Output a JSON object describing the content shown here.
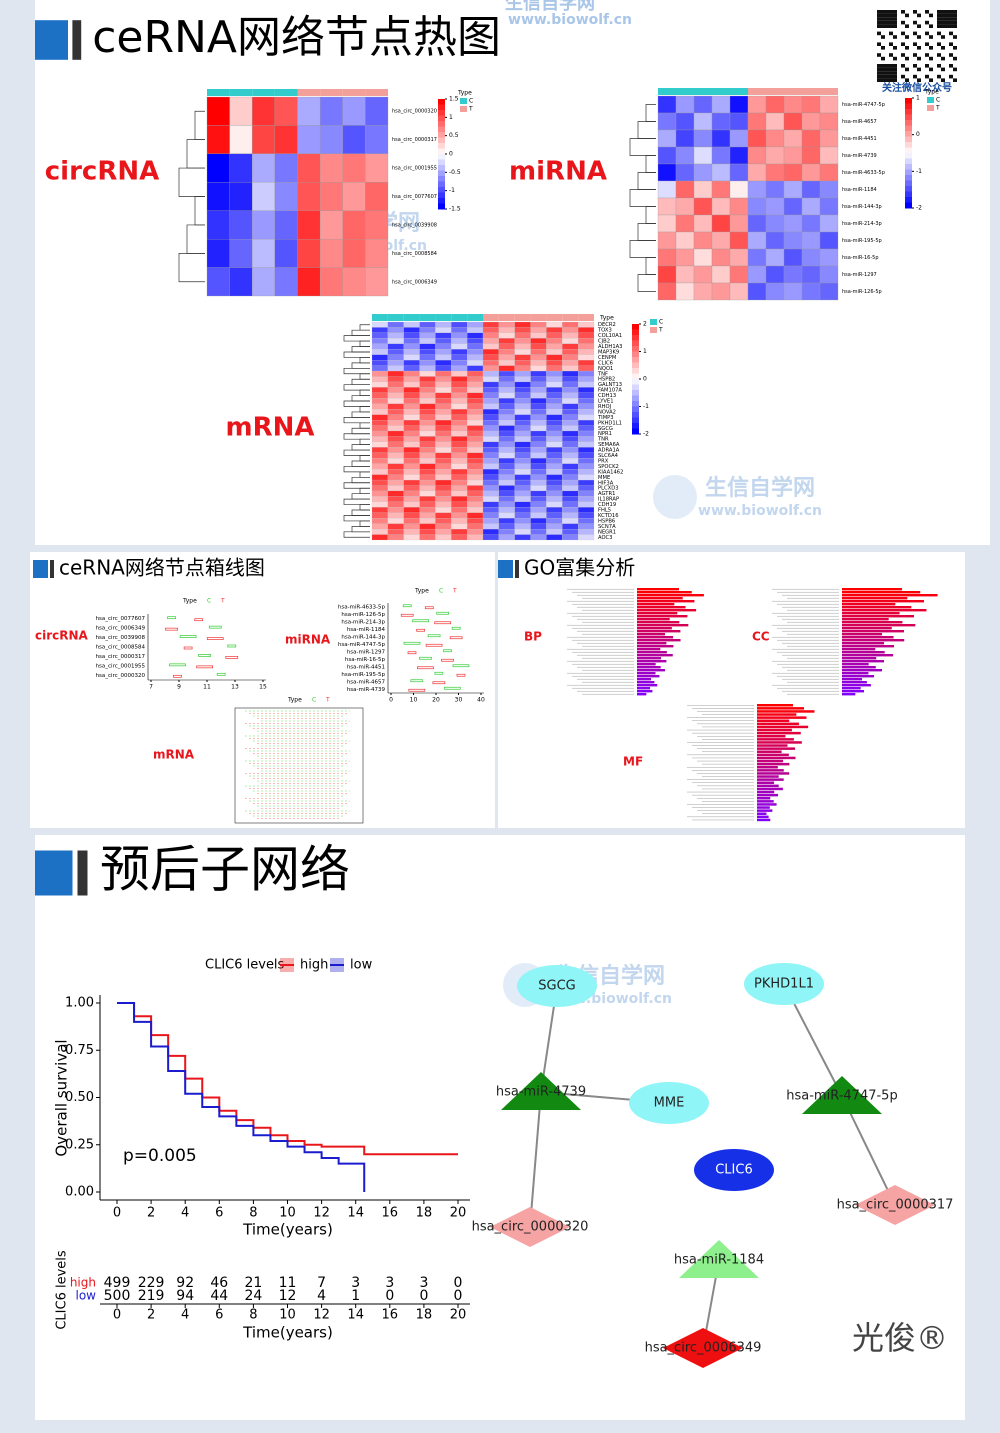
{
  "watermark": {
    "name": "生信自学网",
    "url": "www.biowolf.cn"
  },
  "qr_caption": "关注微信公众号",
  "heatmap_section": {
    "title": "ceRNA网络节点热图",
    "legend_title": "Type",
    "legend_items": [
      "C",
      "T"
    ],
    "circ": {
      "label": "circRNA",
      "rows": [
        "hsa_circ_0000320",
        "hsa_circ_0000317",
        "hsa_circ_0001955",
        "hsa_circ_0077607",
        "hsa_circ_0039908",
        "hsa_circ_0008584",
        "hsa_circ_0006349"
      ],
      "groups": [
        "C",
        "C",
        "C",
        "C",
        "T",
        "T",
        "T",
        "T"
      ],
      "scale_ticks": [
        1.5,
        1,
        0.5,
        0,
        -0.5,
        -1,
        -1.5
      ],
      "matrix": [
        [
          1.5,
          0.3,
          1.2,
          1.0,
          -0.5,
          -0.8,
          -0.6,
          -0.9
        ],
        [
          1.4,
          0.1,
          1.1,
          1.2,
          -0.6,
          -0.7,
          -1.0,
          -0.8
        ],
        [
          -1.5,
          -1.2,
          -0.5,
          -0.8,
          1.0,
          0.7,
          0.8,
          0.6
        ],
        [
          -1.4,
          -1.3,
          -0.3,
          -0.7,
          1.0,
          0.8,
          0.6,
          0.9
        ],
        [
          -1.2,
          -1.0,
          -0.6,
          -0.9,
          1.2,
          0.6,
          0.9,
          0.8
        ],
        [
          -1.3,
          -0.9,
          -0.4,
          -1.0,
          1.1,
          0.7,
          0.9,
          0.7
        ],
        [
          -1.0,
          -1.2,
          -0.5,
          -0.8,
          1.3,
          0.8,
          0.7,
          0.6
        ]
      ]
    },
    "mirna": {
      "label": "miRNA",
      "rows": [
        "hsa-miR-4747-5p",
        "hsa-miR-4657",
        "hsa-miR-4451",
        "hsa-miR-4739",
        "hsa-miR-4633-5p",
        "hsa-miR-1184",
        "hsa-miR-144-3p",
        "hsa-miR-214-3p",
        "hsa-miR-195-5p",
        "hsa-miR-16-5p",
        "hsa-miR-1297",
        "hsa-miR-126-5p"
      ],
      "groups": [
        "C",
        "C",
        "C",
        "C",
        "C",
        "T",
        "T",
        "T",
        "T",
        "T"
      ],
      "scale_ticks": [
        1,
        0,
        -1,
        -2
      ],
      "matrix": [
        [
          -1.2,
          -0.6,
          -0.9,
          -0.5,
          -1.4,
          0.6,
          0.9,
          0.7,
          0.8,
          0.5
        ],
        [
          -0.8,
          -1.0,
          -0.4,
          -0.9,
          -1.0,
          0.8,
          0.4,
          1.0,
          0.6,
          0.7
        ],
        [
          -0.5,
          -1.1,
          -0.7,
          -1.2,
          -0.6,
          1.0,
          0.7,
          0.5,
          0.9,
          0.6
        ],
        [
          -1.0,
          -0.7,
          -0.2,
          -0.8,
          -1.3,
          0.7,
          0.5,
          0.6,
          0.9,
          0.4
        ],
        [
          -1.4,
          -0.9,
          -0.6,
          -0.4,
          -0.9,
          0.5,
          0.8,
          0.9,
          0.6,
          0.8
        ],
        [
          -0.2,
          0.9,
          0.3,
          0.8,
          0.1,
          -0.6,
          -0.8,
          -0.5,
          -0.9,
          -0.7
        ],
        [
          0.4,
          0.5,
          1.0,
          0.4,
          0.7,
          -0.7,
          -0.6,
          -0.9,
          -0.5,
          -0.8
        ],
        [
          0.3,
          0.8,
          0.4,
          1.1,
          0.6,
          -0.9,
          -0.7,
          -0.6,
          -0.8,
          -0.5
        ],
        [
          0.6,
          0.3,
          0.7,
          0.5,
          1.0,
          -0.5,
          -0.9,
          -0.7,
          -0.6,
          -1.0
        ],
        [
          0.8,
          0.6,
          0.2,
          0.7,
          0.5,
          -0.8,
          -0.5,
          -1.0,
          -0.7,
          -0.6
        ],
        [
          1.1,
          0.4,
          0.6,
          0.3,
          0.8,
          -0.6,
          -1.0,
          -0.8,
          -0.9,
          -0.7
        ],
        [
          0.9,
          0.2,
          0.5,
          0.6,
          0.4,
          -1.0,
          -0.7,
          -0.6,
          -0.8,
          -0.9
        ]
      ]
    },
    "mrna": {
      "label": "mRNA",
      "rows": [
        "DECR2",
        "TOX3",
        "COL10A1",
        "CJB2",
        "ALDH1A3",
        "MAP3K9",
        "CENPM",
        "CLIC6",
        "NQO1",
        "TNF",
        "HSPB2",
        "GALNT13",
        "FAM107A",
        "CDH13",
        "LYVE1",
        "RHOJ",
        "NOVA2",
        "TIMP3",
        "PKHD1L1",
        "SGCG",
        "NPR1",
        "TNR",
        "SEMA6A",
        "ADRA1A",
        "SLC6A4",
        "PRX",
        "SPOCK2",
        "KIAA1462",
        "MME",
        "HIF3A",
        "PLCXD3",
        "AGTR1",
        "IL18RAP",
        "CDH19",
        "FHL5",
        "KCTD16",
        "HSPB6",
        "SCN7A",
        "NEGR1",
        "AOC3"
      ],
      "scale_ticks": [
        2,
        1,
        0,
        -1,
        -2
      ]
    }
  },
  "boxplot_section": {
    "title": "ceRNA网络节点箱线图",
    "legend_title": "Type",
    "legend_items": [
      "C",
      "T"
    ],
    "circ": {
      "label": "circRNA",
      "rows": [
        "hsa_circ_0077607",
        "hsa_circ_0006349",
        "hsa_circ_0039908",
        "hsa_circ_0008584",
        "hsa_circ_0000317",
        "hsa_circ_0001955",
        "hsa_circ_0000320"
      ],
      "xticks": [
        7,
        9,
        11,
        13,
        15
      ]
    },
    "mirna": {
      "label": "miRNA",
      "rows": [
        "hsa-miR-4633-5p",
        "hsa-miR-126-5p",
        "hsa-miR-214-3p",
        "hsa-miR-1184",
        "hsa-miR-144-3p",
        "hsa-miR-4747-5p",
        "hsa-miR-1297",
        "hsa-miR-16-5p",
        "hsa-miR-4451",
        "hsa-miR-195-5p",
        "hsa-miR-4657",
        "hsa-miR-4739"
      ],
      "xticks": [
        0,
        10,
        20,
        30,
        40
      ]
    },
    "mrna": {
      "label": "mRNA"
    }
  },
  "go_section": {
    "title": "GO富集分析",
    "labels": [
      "BP",
      "CC",
      "MF"
    ]
  },
  "prognosis_section": {
    "title": "预后子网络",
    "km": {
      "legend_title": "CLIC6 levels",
      "ylabel": "Overall survival",
      "xlabel": "Time(years)",
      "pvalue": "p=0.005",
      "xlim": [
        0,
        20
      ],
      "xticks": [
        0,
        2,
        4,
        6,
        8,
        10,
        12,
        14,
        16,
        18,
        20
      ],
      "ylim": [
        0,
        1
      ],
      "yticks": [
        {
          "value": 0,
          "label": "0.00"
        },
        {
          "value": 0.25,
          "label": "0.25"
        },
        {
          "value": 0.5,
          "label": "0.50"
        },
        {
          "value": 0.75,
          "label": "0.75"
        },
        {
          "value": 1,
          "label": "1.00"
        }
      ],
      "series": [
        {
          "name": "high",
          "color": "#e8161b",
          "x": [
            0,
            1,
            2,
            3,
            4,
            5,
            6,
            7,
            8,
            9,
            10,
            11,
            12,
            13,
            14,
            14.5,
            20
          ],
          "values": [
            1.0,
            0.93,
            0.83,
            0.72,
            0.6,
            0.5,
            0.43,
            0.38,
            0.34,
            0.3,
            0.27,
            0.25,
            0.24,
            0.24,
            0.24,
            0.2,
            0.2
          ]
        },
        {
          "name": "low",
          "color": "#1c1ccf",
          "x": [
            0,
            1,
            2,
            3,
            4,
            5,
            6,
            7,
            8,
            9,
            10,
            11,
            12,
            13,
            14,
            14.5
          ],
          "values": [
            1.0,
            0.9,
            0.77,
            0.64,
            0.52,
            0.45,
            0.4,
            0.35,
            0.3,
            0.27,
            0.24,
            0.21,
            0.18,
            0.15,
            0.15,
            0.0
          ]
        }
      ],
      "risk_table": {
        "ylabel": "CLIC6 levels",
        "rows": [
          {
            "name": "high",
            "color": "#e8161b",
            "counts": [
              499,
              229,
              92,
              46,
              21,
              11,
              7,
              3,
              3,
              3,
              0
            ]
          },
          {
            "name": "low",
            "color": "#1c1ccf",
            "counts": [
              500,
              219,
              94,
              44,
              24,
              12,
              4,
              1,
              0,
              0,
              0
            ]
          }
        ]
      }
    },
    "network": {
      "nodes": [
        {
          "label": "SGCG",
          "shape": "ellipse",
          "color": "#8ff5f7"
        },
        {
          "label": "PKHD1L1",
          "shape": "ellipse",
          "color": "#8ff5f7"
        },
        {
          "label": "hsa-miR-4739",
          "shape": "triangle",
          "color": "#128a12"
        },
        {
          "label": "MME",
          "shape": "ellipse",
          "color": "#8ff5f7"
        },
        {
          "label": "hsa-miR-4747-5p",
          "shape": "triangle",
          "color": "#128a12"
        },
        {
          "label": "CLIC6",
          "shape": "ellipse",
          "color": "#1530e6"
        },
        {
          "label": "hsa-miR-1184",
          "shape": "triangle",
          "color": "#8df08d"
        },
        {
          "label": "hsa_circ_0000320",
          "shape": "diamond",
          "color": "#f5a3a3"
        },
        {
          "label": "hsa_circ_0000317",
          "shape": "diamond",
          "color": "#f5a3a3"
        },
        {
          "label": "hsa_circ_0006349",
          "shape": "diamond",
          "color": "#ee1010"
        }
      ],
      "edges": [
        [
          0,
          2
        ],
        [
          3,
          2
        ],
        [
          2,
          7
        ],
        [
          1,
          4
        ],
        [
          4,
          8
        ],
        [
          6,
          9
        ]
      ]
    },
    "brand": "光俊®"
  }
}
